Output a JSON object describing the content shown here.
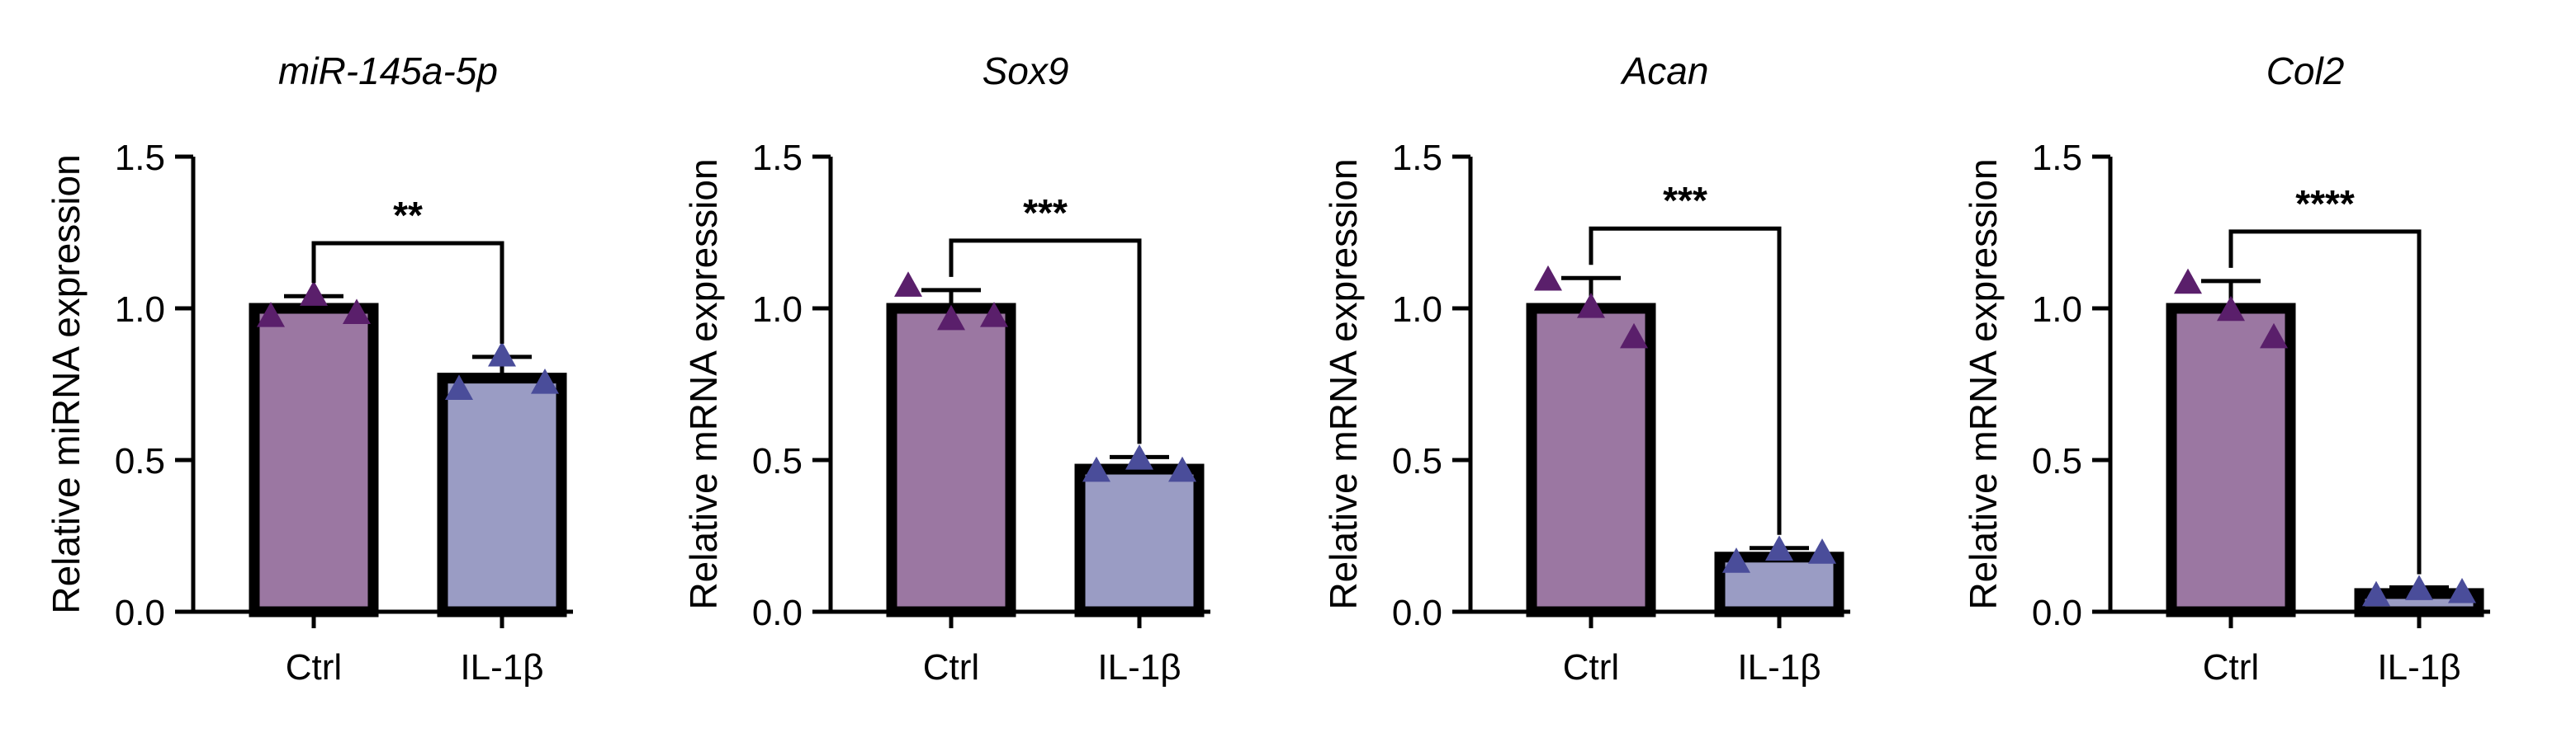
{
  "chart_data": [
    {
      "type": "bar",
      "title": "miR-145a-5p",
      "ylabel": "Relative miRNA expression",
      "categories": [
        "Ctrl",
        "IL-1β"
      ],
      "yticks": [
        "0.0",
        "0.5",
        "1.0",
        "1.5"
      ],
      "ylim": [
        0,
        1.5
      ],
      "values": [
        1.0,
        0.77
      ],
      "error": [
        0.04,
        0.07
      ],
      "points": [
        [
          0.97,
          1.04,
          0.98
        ],
        [
          0.73,
          0.84,
          0.75
        ]
      ],
      "significance": "**",
      "bar_colors": [
        "#9b77a2",
        "#9a9cc4"
      ],
      "marker_colors": [
        "#5a1f6b",
        "#4a4d9a"
      ]
    },
    {
      "type": "bar",
      "title": "Sox9",
      "ylabel": "Relative mRNA expression",
      "categories": [
        "Ctrl",
        "IL-1β"
      ],
      "yticks": [
        "0.0",
        "0.5",
        "1.0",
        "1.5"
      ],
      "ylim": [
        0,
        1.5
      ],
      "values": [
        1.0,
        0.47
      ],
      "error": [
        0.06,
        0.04
      ],
      "points": [
        [
          1.07,
          0.96,
          0.97
        ],
        [
          0.46,
          0.5,
          0.46
        ]
      ],
      "significance": "***",
      "bar_colors": [
        "#9b77a2",
        "#9a9cc4"
      ],
      "marker_colors": [
        "#5a1f6b",
        "#4a4d9a"
      ]
    },
    {
      "type": "bar",
      "title": "Acan",
      "ylabel": "Relative mRNA expression",
      "categories": [
        "Ctrl",
        "IL-1β"
      ],
      "yticks": [
        "0.0",
        "0.5",
        "1.0",
        "1.5"
      ],
      "ylim": [
        0,
        1.5
      ],
      "values": [
        1.0,
        0.18
      ],
      "error": [
        0.1,
        0.03
      ],
      "points": [
        [
          1.09,
          1.0,
          0.9
        ],
        [
          0.16,
          0.2,
          0.19
        ]
      ],
      "significance": "***",
      "bar_colors": [
        "#9b77a2",
        "#9a9cc4"
      ],
      "marker_colors": [
        "#5a1f6b",
        "#4a4d9a"
      ]
    },
    {
      "type": "bar",
      "title": "Col2",
      "ylabel": "Relative mRNA expression",
      "categories": [
        "Ctrl",
        "IL-1β"
      ],
      "yticks": [
        "0.0",
        "0.5",
        "1.0",
        "1.5"
      ],
      "ylim": [
        0,
        1.5
      ],
      "values": [
        1.0,
        0.06
      ],
      "error": [
        0.09,
        0.02
      ],
      "points": [
        [
          1.08,
          0.99,
          0.9
        ],
        [
          0.05,
          0.07,
          0.06
        ]
      ],
      "significance": "****",
      "bar_colors": [
        "#9b77a2",
        "#9a9cc4"
      ],
      "marker_colors": [
        "#5a1f6b",
        "#4a4d9a"
      ]
    }
  ]
}
